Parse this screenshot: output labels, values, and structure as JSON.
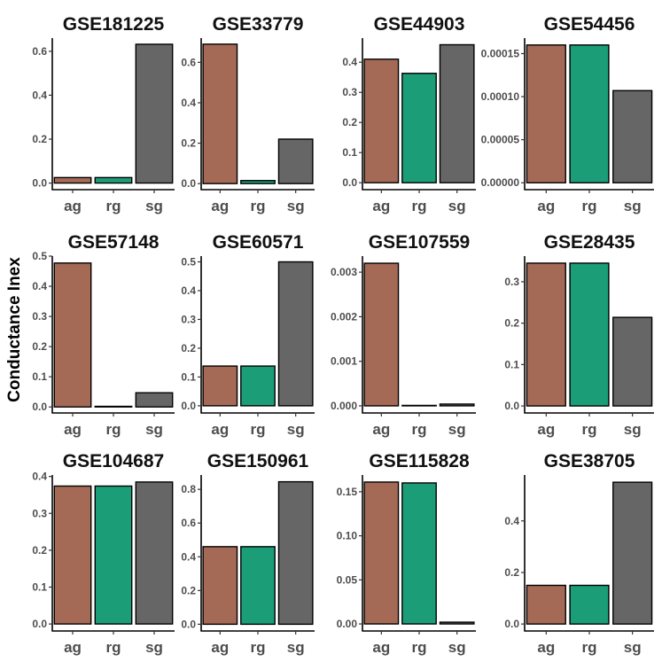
{
  "chart_data": {
    "type": "bar",
    "ylabel": "Conductance Inex",
    "categories": [
      "ag",
      "rg",
      "sg"
    ],
    "colors": {
      "ag": "#a56a56",
      "rg": "#1b9e77",
      "sg": "#666666"
    },
    "panels": [
      {
        "title": "GSE181225",
        "values": [
          0.025,
          0.025,
          0.632
        ],
        "ylim": [
          -0.03,
          0.66
        ],
        "ticks": [
          0.0,
          0.2,
          0.4,
          0.6
        ],
        "tick_labels": [
          "0.0",
          "0.2",
          "0.4",
          "0.6"
        ]
      },
      {
        "title": "GSE33779",
        "values": [
          0.69,
          0.015,
          0.22
        ],
        "ylim": [
          -0.03,
          0.72
        ],
        "ticks": [
          0.0,
          0.2,
          0.4,
          0.6
        ],
        "tick_labels": [
          "0.0",
          "0.2",
          "0.4",
          "0.6"
        ]
      },
      {
        "title": "GSE44903",
        "values": [
          0.41,
          0.363,
          0.458
        ],
        "ylim": [
          -0.023,
          0.48
        ],
        "ticks": [
          0.0,
          0.1,
          0.2,
          0.3,
          0.4
        ],
        "tick_labels": [
          "0.0",
          "0.1",
          "0.2",
          "0.3",
          "0.4"
        ]
      },
      {
        "title": "GSE54456",
        "values": [
          0.00016,
          0.00016,
          0.000107
        ],
        "ylim": [
          -8e-06,
          0.000168
        ],
        "ticks": [
          0.0,
          5e-05,
          0.0001,
          0.00015
        ],
        "tick_labels": [
          "0.00000",
          "0.00005",
          "0.00010",
          "0.00015"
        ]
      },
      {
        "title": "GSE57148",
        "values": [
          0.477,
          0.002,
          0.047
        ],
        "ylim": [
          -0.02,
          0.5
        ],
        "ticks": [
          0.0,
          0.1,
          0.2,
          0.3,
          0.4,
          0.5
        ],
        "tick_labels": [
          "0.0",
          "0.1",
          "0.2",
          "0.3",
          "0.4",
          "0.5"
        ]
      },
      {
        "title": "GSE60571",
        "values": [
          0.138,
          0.138,
          0.5
        ],
        "ylim": [
          -0.025,
          0.52
        ],
        "ticks": [
          0.0,
          0.1,
          0.2,
          0.3,
          0.4,
          0.5
        ],
        "tick_labels": [
          "0.0",
          "0.1",
          "0.2",
          "0.3",
          "0.4",
          "0.5"
        ]
      },
      {
        "title": "GSE107559",
        "values": [
          0.0032,
          1e-05,
          4e-05
        ],
        "ylim": [
          -0.00016,
          0.00336
        ],
        "ticks": [
          0.0,
          0.001,
          0.002,
          0.003
        ],
        "tick_labels": [
          "0.000",
          "0.001",
          "0.002",
          "0.003"
        ]
      },
      {
        "title": "GSE28435",
        "values": [
          0.345,
          0.345,
          0.214
        ],
        "ylim": [
          -0.017,
          0.362
        ],
        "ticks": [
          0.0,
          0.1,
          0.2,
          0.3
        ],
        "tick_labels": [
          "0.0",
          "0.1",
          "0.2",
          "0.3"
        ]
      },
      {
        "title": "GSE104687",
        "values": [
          0.374,
          0.374,
          0.385
        ],
        "ylim": [
          -0.019,
          0.404
        ],
        "ticks": [
          0.0,
          0.1,
          0.2,
          0.3,
          0.4
        ],
        "tick_labels": [
          "0.0",
          "0.1",
          "0.2",
          "0.3",
          "0.4"
        ]
      },
      {
        "title": "GSE150961",
        "values": [
          0.46,
          0.46,
          0.845
        ],
        "ylim": [
          -0.04,
          0.885
        ],
        "ticks": [
          0.0,
          0.2,
          0.4,
          0.6,
          0.8
        ],
        "tick_labels": [
          "0.0",
          "0.2",
          "0.4",
          "0.6",
          "0.8"
        ]
      },
      {
        "title": "GSE115828",
        "values": [
          0.161,
          0.16,
          0.002
        ],
        "ylim": [
          -0.008,
          0.169
        ],
        "ticks": [
          0.0,
          0.05,
          0.1,
          0.15
        ],
        "tick_labels": [
          "0.00",
          "0.05",
          "0.10",
          "0.15"
        ]
      },
      {
        "title": "GSE38705",
        "values": [
          0.15,
          0.15,
          0.55
        ],
        "ylim": [
          -0.027,
          0.578
        ],
        "ticks": [
          0.0,
          0.2,
          0.4
        ],
        "tick_labels": [
          "0.0",
          "0.2",
          "0.4"
        ]
      }
    ]
  }
}
